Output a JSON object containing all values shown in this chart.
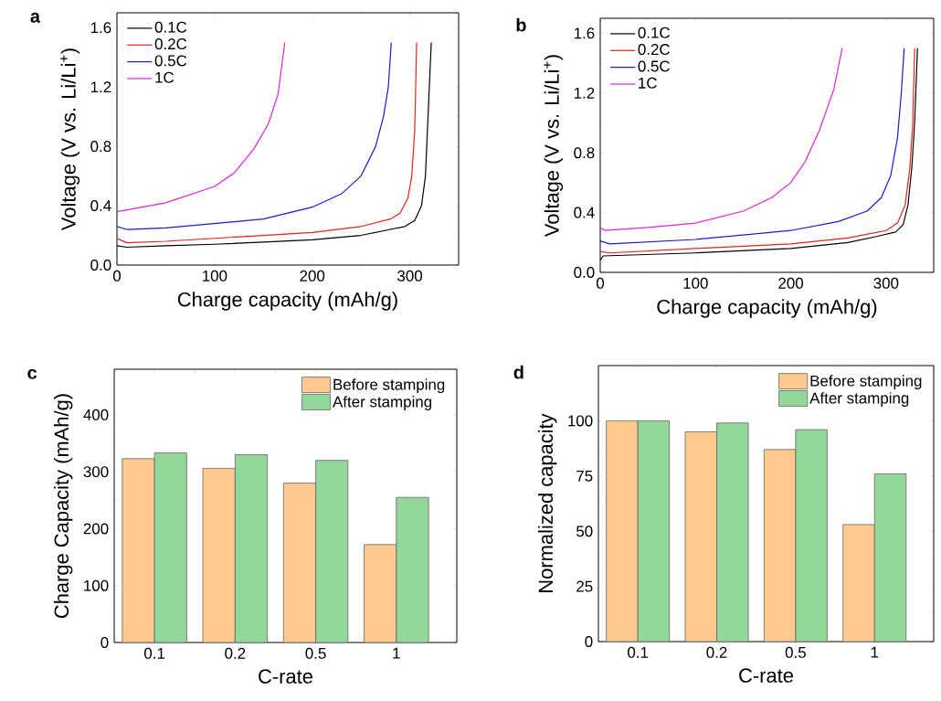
{
  "chart_data": [
    {
      "type": "line",
      "title": "a",
      "xlabel": "Charge capacity (mAh/g)",
      "ylabel": "Voltage (V vs. Li/Li$^{+}$)",
      "xlim": [
        0,
        350
      ],
      "ylim": [
        0,
        1.7
      ],
      "xticks": [
        0,
        100,
        200,
        300
      ],
      "yticks": [
        {
          "value": 0,
          "label": "0.0"
        },
        0.4,
        0.8,
        1.2,
        1.6
      ],
      "legend": "top left",
      "series": [
        {
          "name": "0.1C",
          "color": "#000000",
          "x": [
            0,
            10,
            50,
            100,
            150,
            200,
            250,
            280,
            295,
            305,
            312,
            316,
            318,
            320,
            322
          ],
          "values": [
            0.13,
            0.12,
            0.13,
            0.14,
            0.155,
            0.17,
            0.2,
            0.24,
            0.26,
            0.3,
            0.4,
            0.6,
            0.9,
            1.2,
            1.5
          ]
        },
        {
          "name": "0.2C",
          "color": "#e8221a",
          "x": [
            0,
            10,
            50,
            100,
            150,
            200,
            250,
            280,
            290,
            298,
            302,
            305,
            306,
            307
          ],
          "values": [
            0.18,
            0.15,
            0.16,
            0.18,
            0.2,
            0.22,
            0.26,
            0.31,
            0.35,
            0.45,
            0.6,
            0.9,
            1.2,
            1.5
          ]
        },
        {
          "name": "0.5C",
          "color": "#1a1acc",
          "x": [
            0,
            10,
            50,
            100,
            150,
            200,
            230,
            250,
            265,
            273,
            278,
            281
          ],
          "values": [
            0.26,
            0.24,
            0.25,
            0.28,
            0.31,
            0.39,
            0.48,
            0.6,
            0.8,
            1.0,
            1.2,
            1.5
          ]
        },
        {
          "name": "1C",
          "color": "#e020e0",
          "x": [
            0,
            50,
            100,
            120,
            140,
            155,
            165,
            172
          ],
          "values": [
            0.36,
            0.42,
            0.53,
            0.62,
            0.78,
            0.95,
            1.15,
            1.5
          ]
        }
      ]
    },
    {
      "type": "line",
      "title": "b",
      "xlabel": "Charge capacity (mAh/g)",
      "ylabel": "Voltage (V vs. Li/Li$^{+}$)",
      "xlim": [
        0,
        350
      ],
      "ylim": [
        0,
        1.7
      ],
      "xticks": [
        0,
        100,
        200,
        300
      ],
      "yticks": [
        {
          "value": 0,
          "label": "0.0"
        },
        0.4,
        0.8,
        1.2,
        1.6
      ],
      "legend": "top left",
      "series": [
        {
          "name": "0.1C",
          "color": "#000000",
          "x": [
            0,
            3,
            100,
            200,
            260,
            290,
            310,
            318,
            323,
            327,
            330,
            333
          ],
          "values": [
            0.08,
            0.11,
            0.13,
            0.16,
            0.2,
            0.24,
            0.27,
            0.32,
            0.45,
            0.7,
            1.0,
            1.5
          ]
        },
        {
          "name": "0.2C",
          "color": "#e8221a",
          "x": [
            0,
            10,
            100,
            200,
            260,
            300,
            312,
            320,
            325,
            328,
            330
          ],
          "values": [
            0.14,
            0.13,
            0.16,
            0.19,
            0.23,
            0.28,
            0.33,
            0.45,
            0.7,
            1.0,
            1.5
          ]
        },
        {
          "name": "0.5C",
          "color": "#1a1acc",
          "x": [
            0,
            10,
            100,
            200,
            250,
            280,
            295,
            305,
            312,
            316,
            319
          ],
          "values": [
            0.21,
            0.19,
            0.22,
            0.28,
            0.34,
            0.41,
            0.5,
            0.65,
            0.9,
            1.2,
            1.5
          ]
        },
        {
          "name": "1C",
          "color": "#e020e0",
          "x": [
            0,
            5,
            50,
            100,
            150,
            180,
            200,
            215,
            230,
            245,
            254
          ],
          "values": [
            0.3,
            0.28,
            0.3,
            0.33,
            0.41,
            0.5,
            0.6,
            0.74,
            0.95,
            1.22,
            1.5
          ]
        }
      ]
    },
    {
      "type": "bar",
      "title": "c",
      "xlabel": "C-rate",
      "ylabel": "Charge Capacity (mAh/g)",
      "categories": [
        "0.1",
        "0.2",
        "0.5",
        "1"
      ],
      "ylim": [
        0,
        480
      ],
      "yticks": [
        0,
        100,
        200,
        300,
        400
      ],
      "legend": "top right",
      "series": [
        {
          "name": "Before stamping",
          "color": "#fdc98e",
          "values": [
            323,
            306,
            280,
            172
          ]
        },
        {
          "name": "After stamping",
          "color": "#93d79a",
          "values": [
            333,
            330,
            320,
            255
          ]
        }
      ]
    },
    {
      "type": "bar",
      "title": "d",
      "xlabel": "C-rate",
      "ylabel": "Normalized capacity",
      "categories": [
        "0.1",
        "0.2",
        "0.5",
        "1"
      ],
      "ylim": [
        0,
        125
      ],
      "yticks": [
        0,
        25,
        50,
        75,
        100
      ],
      "legend": "top right",
      "series": [
        {
          "name": "Before stamping",
          "color": "#fdc98e",
          "values": [
            100,
            95,
            87,
            53
          ]
        },
        {
          "name": "After stamping",
          "color": "#93d79a",
          "values": [
            100,
            99,
            96,
            76
          ]
        }
      ]
    }
  ]
}
